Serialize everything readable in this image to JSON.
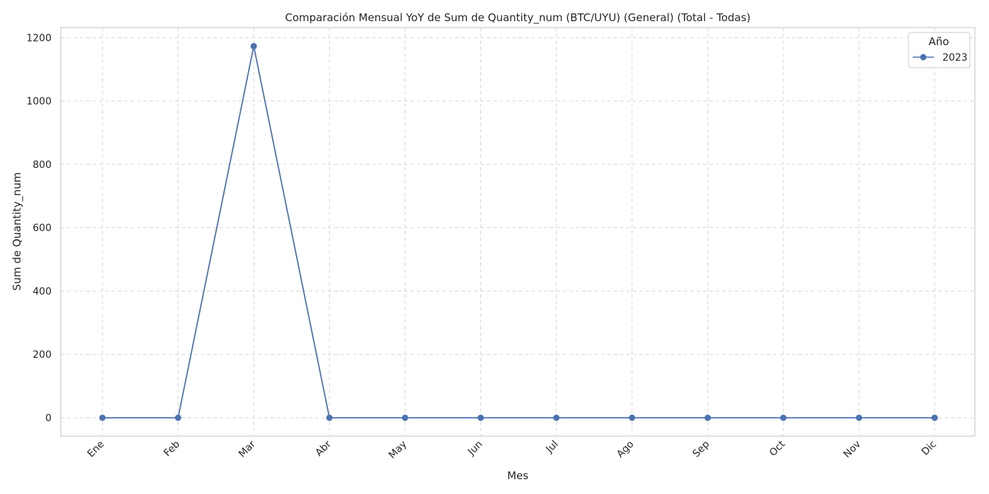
{
  "chart_data": {
    "type": "line",
    "title": "Comparación Mensual YoY de Sum de Quantity_num (BTC/UYU) (General) (Total - Todas)",
    "xlabel": "Mes",
    "ylabel": "Sum de Quantity_num",
    "categories": [
      "Ene",
      "Feb",
      "Mar",
      "Abr",
      "May",
      "Jun",
      "Jul",
      "Ago",
      "Sep",
      "Oct",
      "Nov",
      "Dic"
    ],
    "series": [
      {
        "name": "2023",
        "color": "#4c72b0",
        "values": [
          0,
          0,
          1173,
          0,
          0,
          0,
          0,
          0,
          0,
          0,
          0,
          0
        ]
      }
    ],
    "ylim": [
      -58,
      1232
    ],
    "yticks": [
      0,
      200,
      400,
      600,
      800,
      1000,
      1200
    ],
    "legend": {
      "title": "Año",
      "position": "top-right"
    },
    "grid": true
  }
}
